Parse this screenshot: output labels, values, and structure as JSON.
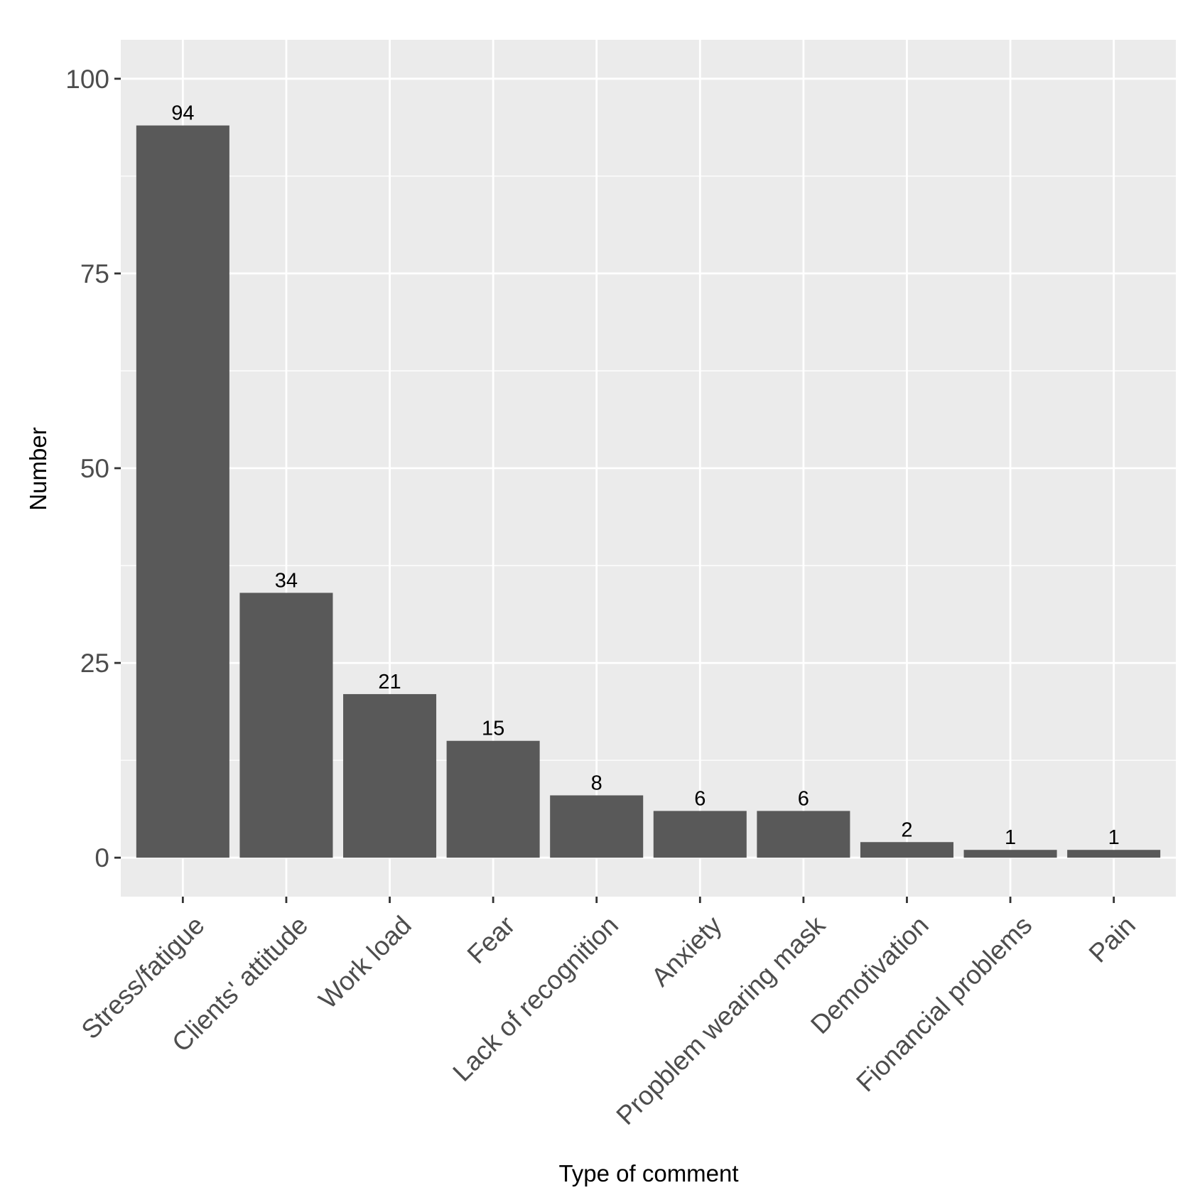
{
  "chart_data": {
    "type": "bar",
    "title": "",
    "xlabel": "Type of comment",
    "ylabel": "Number",
    "categories": [
      "Stress/fatigue",
      "Clients' attitude",
      "Work load",
      "Fear",
      "Lack of recognition",
      "Anxiety",
      "Propblem wearing mask",
      "Demotivation",
      "Fionancial problems",
      "Pain"
    ],
    "values": [
      94,
      34,
      21,
      15,
      8,
      6,
      6,
      2,
      1,
      1
    ],
    "data_labels": [
      "94",
      "34",
      "21",
      "15",
      "8",
      "6",
      "6",
      "2",
      "1",
      "1"
    ],
    "yticks": [
      0,
      25,
      50,
      75,
      100
    ],
    "ylim": [
      -5,
      105
    ],
    "grid": true,
    "legend": "none",
    "colors": {
      "panel": "#ebebeb",
      "grid": "#ffffff",
      "bar": "#595959"
    }
  }
}
